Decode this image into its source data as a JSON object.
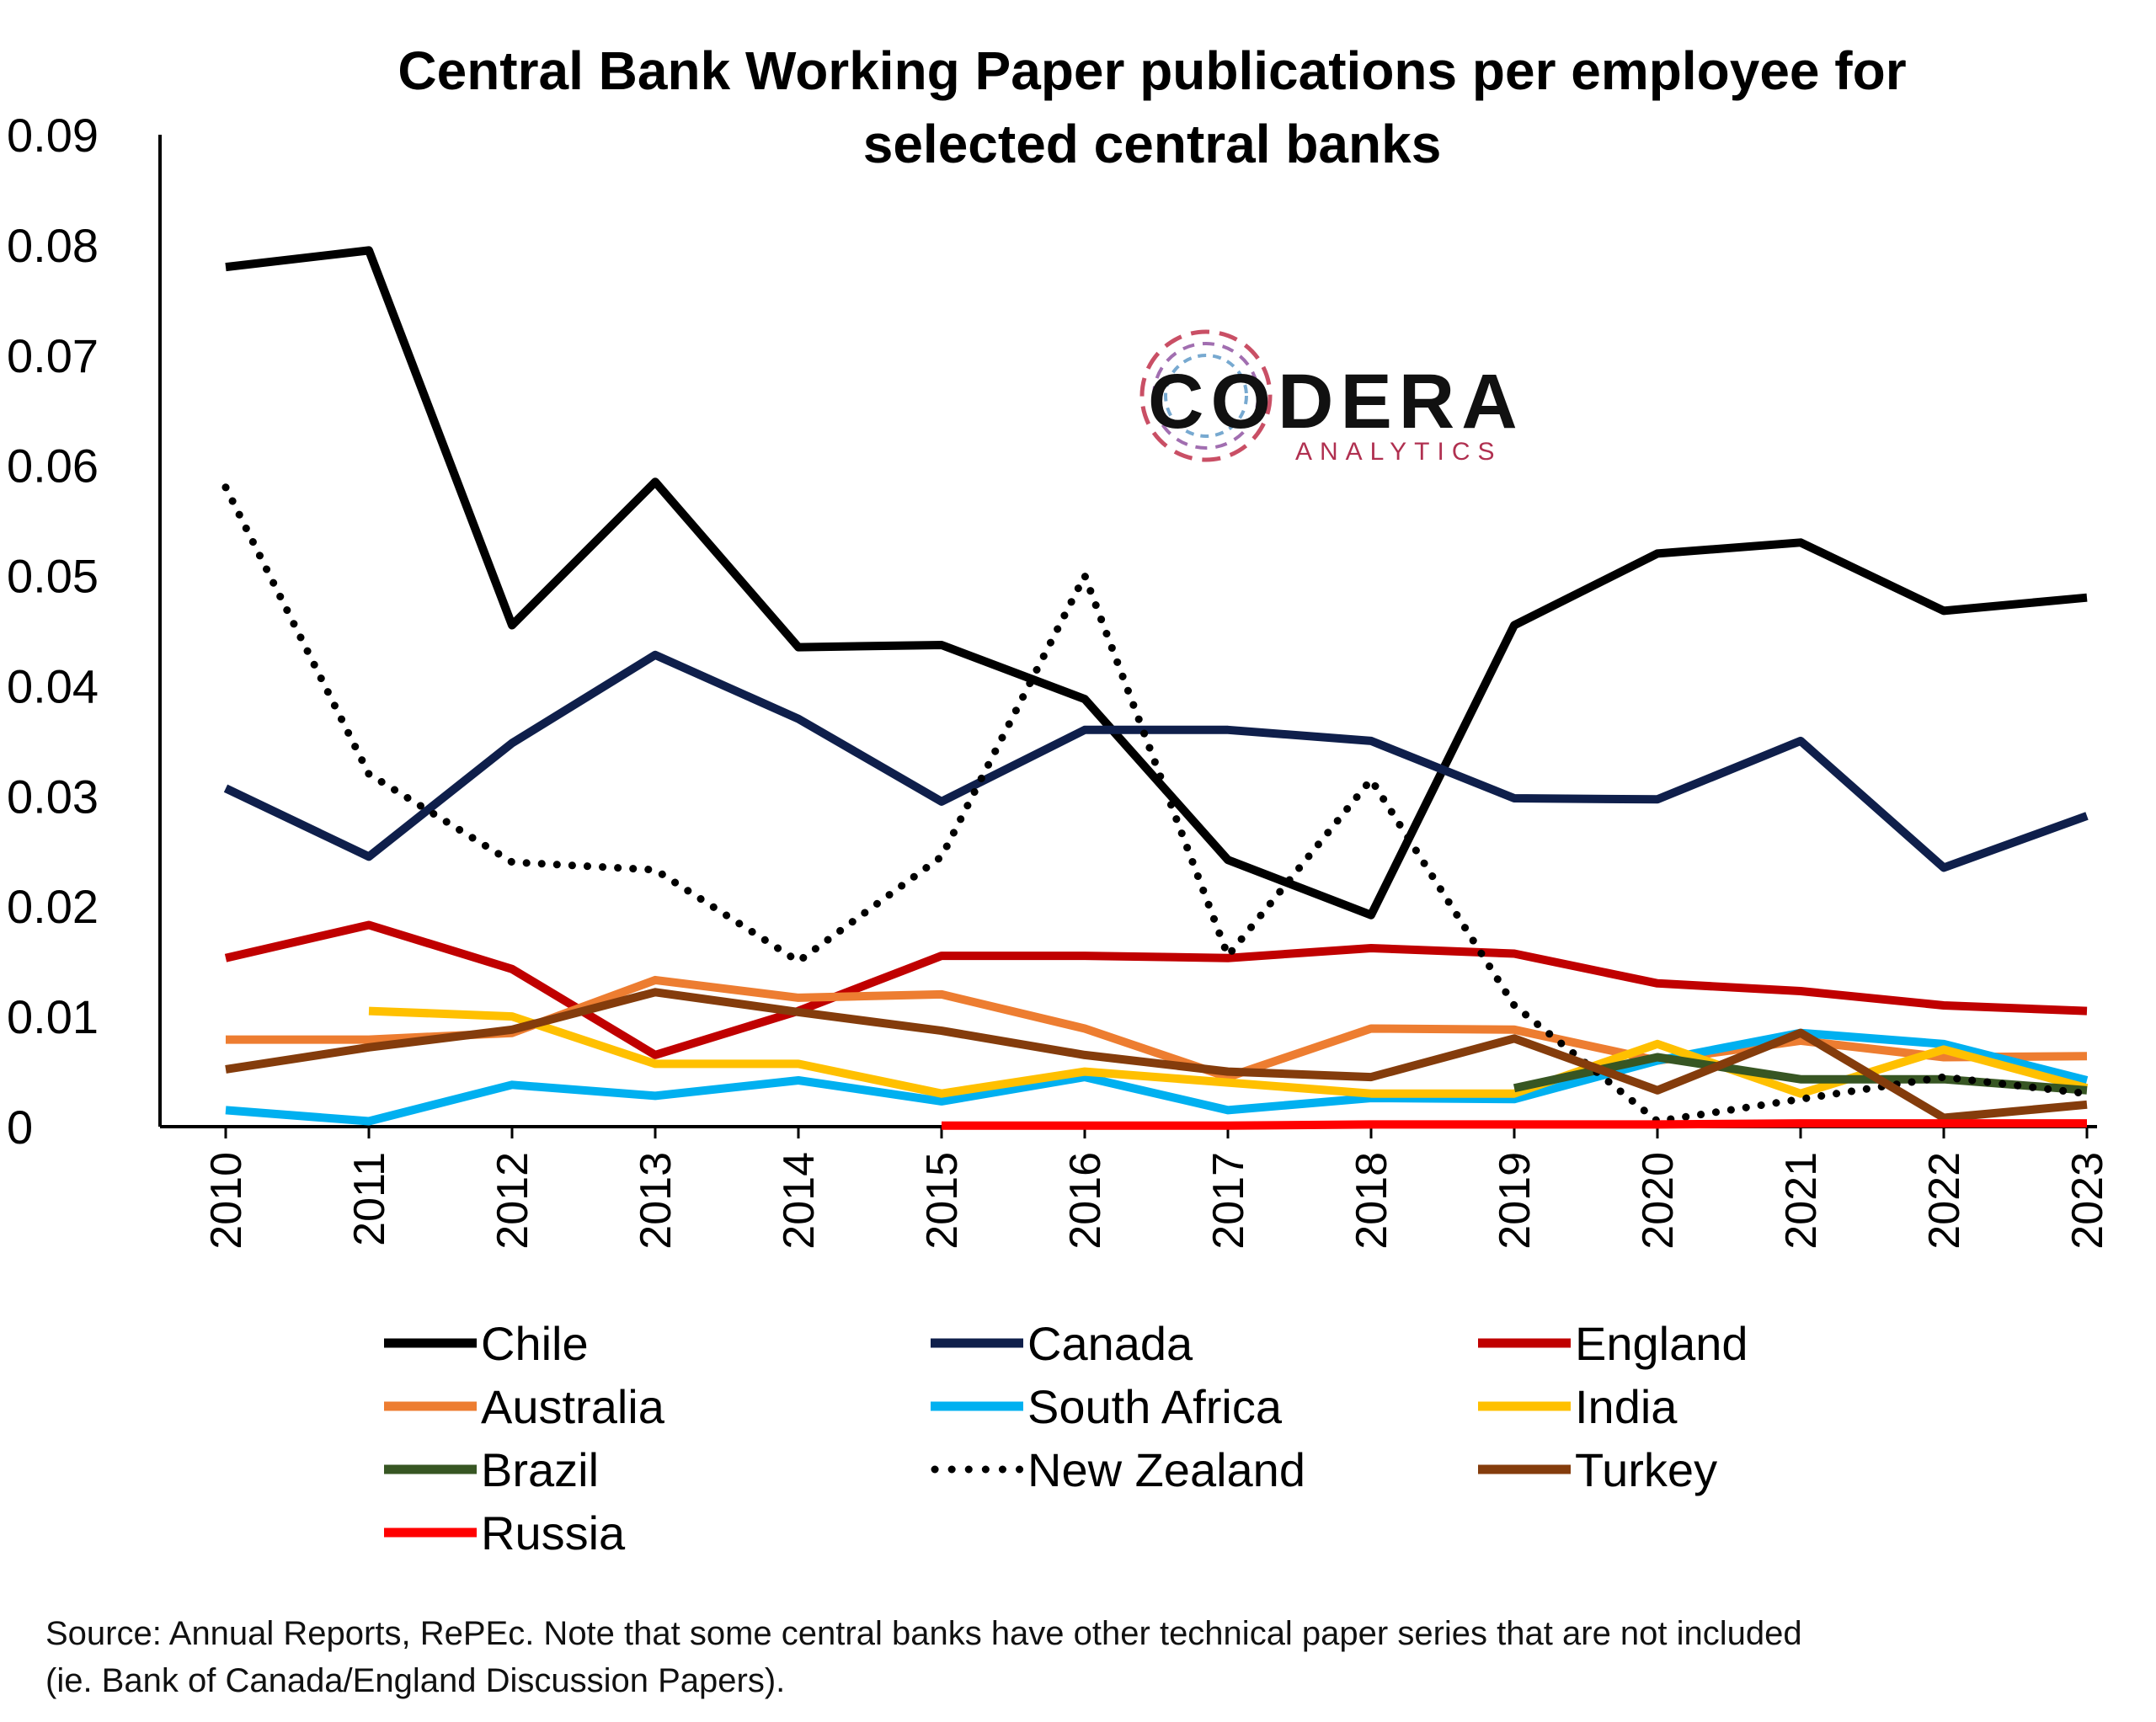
{
  "chart_data": {
    "type": "line",
    "title_lines": [
      "Central Bank Working Paper publications per employee for",
      "selected central banks"
    ],
    "x": [
      "2010",
      "2011",
      "2012",
      "2013",
      "2014",
      "2015",
      "2016",
      "2017",
      "2018",
      "2019",
      "2020",
      "2021",
      "2022",
      "2023"
    ],
    "ylim": [
      0,
      0.09
    ],
    "yticks": [
      "0",
      "0.01",
      "0.02",
      "0.03",
      "0.04",
      "0.05",
      "0.06",
      "0.07",
      "0.08",
      "0.09"
    ],
    "legend_position": "bottom",
    "series": [
      {
        "name": "Chile",
        "color": "#000000",
        "dashed": false,
        "values": [
          0.078,
          0.0795,
          0.0455,
          0.0585,
          0.0435,
          0.0437,
          0.0388,
          0.0242,
          0.0192,
          0.0455,
          0.052,
          0.053,
          0.0468,
          0.048
        ]
      },
      {
        "name": "Canada",
        "color": "#0f1f4b",
        "dashed": false,
        "values": [
          0.0307,
          0.0245,
          0.0348,
          0.0428,
          0.037,
          0.0295,
          0.036,
          0.036,
          0.035,
          0.0298,
          0.0297,
          0.035,
          0.0235,
          0.0282
        ]
      },
      {
        "name": "England",
        "color": "#c00000",
        "dashed": false,
        "values": [
          0.0153,
          0.0183,
          0.0143,
          0.0065,
          0.0105,
          0.0155,
          0.0155,
          0.0153,
          0.0162,
          0.0157,
          0.013,
          0.0123,
          0.011,
          0.0105
        ]
      },
      {
        "name": "Australia",
        "color": "#ed7d31",
        "dashed": false,
        "values": [
          0.0079,
          0.0079,
          0.0085,
          0.0133,
          0.0117,
          0.012,
          0.0089,
          0.0045,
          0.0089,
          0.0088,
          0.006,
          0.0078,
          0.0063,
          0.0064
        ]
      },
      {
        "name": "South Africa",
        "color": "#00b0f0",
        "dashed": false,
        "values": [
          0.0015,
          0.0005,
          0.0038,
          0.0028,
          0.0042,
          0.0023,
          0.0045,
          0.0015,
          0.0026,
          0.0025,
          0.006,
          0.0085,
          0.0075,
          0.0042
        ]
      },
      {
        "name": "India",
        "color": "#ffc000",
        "dashed": false,
        "values": [
          null,
          0.0105,
          0.01,
          0.0057,
          0.0057,
          0.003,
          0.005,
          0.004,
          0.003,
          0.003,
          0.0075,
          0.003,
          0.007,
          0.0035
        ]
      },
      {
        "name": "Brazil",
        "color": "#375623",
        "dashed": false,
        "values": [
          null,
          null,
          null,
          null,
          null,
          null,
          null,
          null,
          null,
          0.0035,
          0.0063,
          0.0043,
          0.0043,
          0.0033
        ]
      },
      {
        "name": "New Zealand",
        "color": "#000000",
        "dashed": true,
        "values": [
          0.058,
          0.032,
          0.024,
          0.0233,
          0.015,
          0.0245,
          0.05,
          0.0155,
          0.0315,
          0.011,
          0.0005,
          0.0025,
          0.0045,
          0.003
        ]
      },
      {
        "name": "Turkey",
        "color": "#843c0c",
        "dashed": false,
        "values": [
          0.0052,
          0.0072,
          0.0088,
          0.0122,
          0.0104,
          0.0087,
          0.0065,
          0.005,
          0.0045,
          0.008,
          0.0033,
          0.0085,
          0.0008,
          0.002
        ]
      },
      {
        "name": "Russia",
        "color": "#ff0000",
        "dashed": false,
        "values": [
          null,
          null,
          null,
          null,
          null,
          0.0001,
          0.0001,
          0.0001,
          0.0002,
          0.0002,
          0.0002,
          0.0003,
          0.0003,
          0.0003
        ]
      }
    ]
  },
  "logo": {
    "name": "CODERA",
    "sub": "ANALYTICS"
  },
  "source_note": {
    "line1": "Source: Annual Reports, RePEc. Note that some central banks have other technical paper series that are not included",
    "line2": "(ie. Bank of Canada/England Discussion Papers)."
  }
}
